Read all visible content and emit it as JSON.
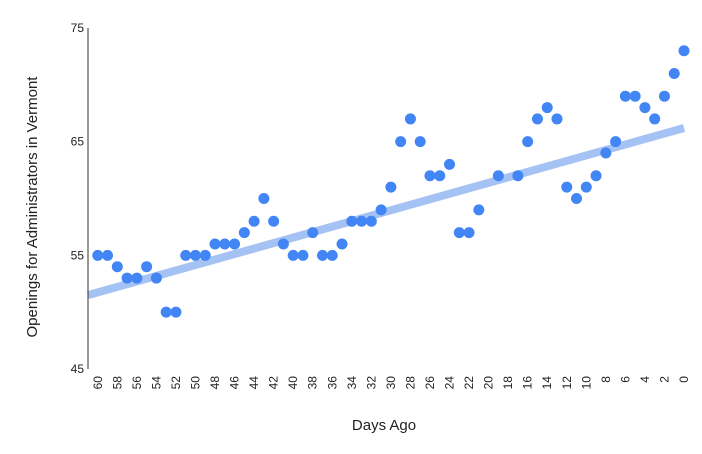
{
  "chart_data": {
    "type": "scatter",
    "title": "",
    "xlabel": "Days Ago",
    "ylabel": "Openings for Administrators in Vermont",
    "x_reversed": true,
    "xlim": [
      61,
      0
    ],
    "ylim": [
      45,
      75
    ],
    "y_ticks": [
      45,
      55,
      65,
      75
    ],
    "x_ticks": [
      60,
      58,
      56,
      54,
      52,
      50,
      48,
      46,
      44,
      42,
      40,
      38,
      36,
      34,
      32,
      30,
      28,
      26,
      24,
      22,
      20,
      18,
      16,
      14,
      12,
      10,
      8,
      6,
      4,
      2,
      0
    ],
    "grid": false,
    "legend": "none",
    "colors": {
      "points": "#4285f4",
      "trendline": "#a4c2f4"
    },
    "trendline": {
      "type": "linear",
      "x": [
        61,
        0
      ],
      "y": [
        51.5,
        66.2
      ]
    },
    "series": [
      {
        "x": [
          60,
          59,
          58,
          57,
          56,
          55,
          54,
          53,
          52,
          51,
          50,
          49,
          48,
          47,
          46,
          45,
          44,
          43,
          42,
          41,
          40,
          39,
          38,
          37,
          36,
          35,
          34,
          33,
          32,
          31,
          30,
          29,
          28,
          27,
          26,
          25,
          24,
          23,
          22,
          21,
          19,
          17,
          16,
          15,
          14,
          13,
          12,
          11,
          10,
          9,
          8,
          7,
          6,
          5,
          4,
          3,
          2,
          1,
          0
        ],
        "y": [
          55,
          55,
          54,
          53,
          53,
          54,
          53,
          50,
          50,
          55,
          55,
          55,
          56,
          56,
          56,
          57,
          58,
          60,
          58,
          56,
          55,
          55,
          57,
          55,
          55,
          56,
          58,
          58,
          58,
          59,
          61,
          65,
          67,
          65,
          62,
          62,
          63,
          57,
          57,
          59,
          62,
          62,
          65,
          67,
          68,
          67,
          61,
          60,
          61,
          62,
          64,
          65,
          69,
          69,
          68,
          67,
          69,
          71,
          73
        ]
      }
    ]
  }
}
